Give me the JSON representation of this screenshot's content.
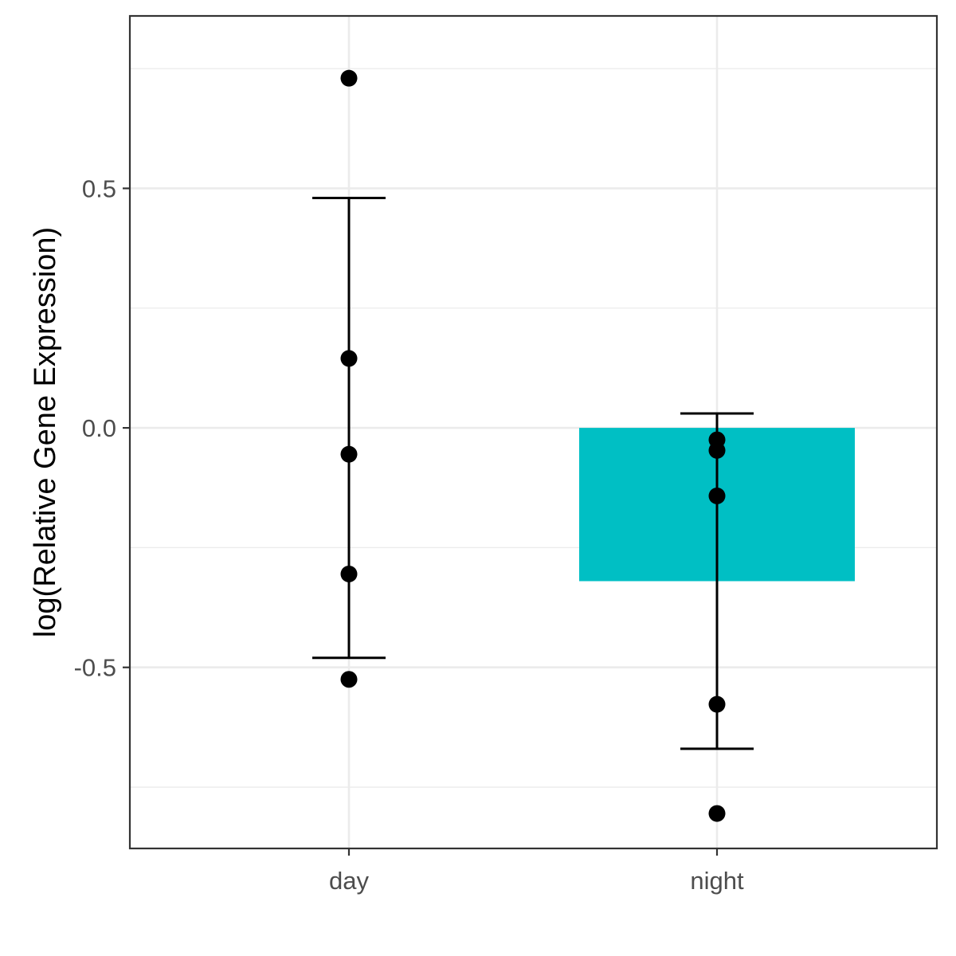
{
  "chart_data": {
    "type": "bar",
    "title": "",
    "xlabel": "",
    "ylabel": "log(Relative Gene Expression)",
    "categories": [
      "day",
      "night"
    ],
    "bars": [
      {
        "category": "day",
        "value": 0.0
      },
      {
        "category": "night",
        "value": -0.32
      }
    ],
    "error_bars": [
      {
        "category": "day",
        "low": -0.48,
        "high": 0.48
      },
      {
        "category": "night",
        "low": -0.67,
        "high": 0.03
      }
    ],
    "points": [
      {
        "category": "day",
        "values": [
          0.73,
          0.145,
          -0.055,
          -0.305,
          -0.525
        ]
      },
      {
        "category": "night",
        "values": [
          -0.025,
          -0.047,
          -0.142,
          -0.577,
          -0.805
        ]
      }
    ],
    "yticks": [
      -0.5,
      0.0,
      0.5
    ],
    "ytick_labels": [
      "-0.5",
      "0.0",
      "0.5"
    ],
    "ylim": [
      -0.878,
      0.86
    ],
    "grid": true,
    "legend": "none",
    "colors": {
      "bar_fill": "#00BFC4",
      "points": "#000000",
      "error_bars": "#000000",
      "grid": "#ebebeb",
      "panel_border": "#333333"
    }
  }
}
